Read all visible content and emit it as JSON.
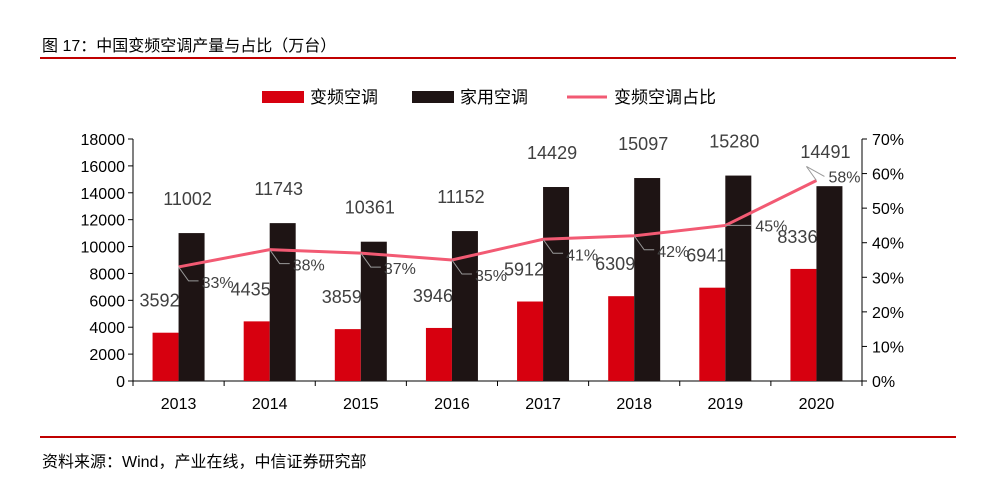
{
  "title": "图 17：中国变频空调产量与占比（万台）",
  "source": "资料来源：Wind，产业在线，中信证券研究部",
  "chart_data": {
    "type": "bar+line",
    "categories": [
      "2013",
      "2014",
      "2015",
      "2016",
      "2017",
      "2018",
      "2019",
      "2020"
    ],
    "series": [
      {
        "name": "变频空调",
        "type": "bar",
        "axis": "left",
        "color": "#d7000f",
        "values": [
          3592,
          4435,
          3859,
          3946,
          5912,
          6309,
          6941,
          8336
        ]
      },
      {
        "name": "家用空调",
        "type": "bar",
        "axis": "left",
        "color": "#1e1414",
        "values": [
          11002,
          11743,
          10361,
          11152,
          14429,
          15097,
          15280,
          14491
        ]
      },
      {
        "name": "变频空调占比",
        "type": "line",
        "axis": "right",
        "color": "#f25a73",
        "values": [
          33,
          38,
          37,
          35,
          41,
          42,
          45,
          58
        ],
        "labels": [
          "33%",
          "38%",
          "37%",
          "35%",
          "41%",
          "42%",
          "45%",
          "58%"
        ]
      }
    ],
    "ylim": [
      0,
      18000
    ],
    "yticks": [
      "0",
      "2000",
      "4000",
      "6000",
      "8000",
      "10000",
      "12000",
      "14000",
      "16000",
      "18000"
    ],
    "y2lim": [
      0,
      70
    ],
    "y2ticks": [
      "0%",
      "10%",
      "20%",
      "30%",
      "40%",
      "50%",
      "60%",
      "70%"
    ],
    "legend": "top",
    "grid": false
  }
}
